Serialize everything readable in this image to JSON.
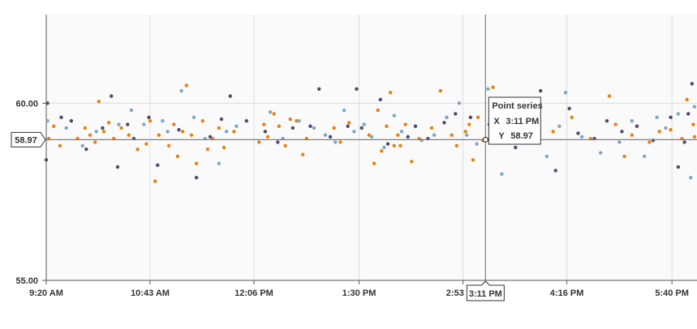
{
  "colors": {
    "series_orange": "#e8820f",
    "series_blue": "#7ea6c4",
    "series_purple": "#54486e",
    "plot_bg": "#fafafa",
    "grid": "#dddddd",
    "crosshair": "#7f7f7f"
  },
  "chart_data": {
    "type": "scatter",
    "title": "",
    "xlabel": "",
    "ylabel": "",
    "x_ticks": [
      "9:20 AM",
      "10:43 AM",
      "12:06 PM",
      "1:30 PM",
      "2:53 PM",
      "4:16 PM",
      "5:40 PM"
    ],
    "x_range": [
      "9:20 AM",
      "6:00 PM"
    ],
    "y_ticks": [
      "55.00",
      "60.00"
    ],
    "ylim": [
      55.0,
      62.5
    ],
    "grid": true,
    "series": [
      {
        "color": "#e8820f",
        "points": [
          [
            "9:22 AM",
            59.0
          ],
          [
            "9:26 AM",
            59.35
          ],
          [
            "9:31 AM",
            58.8
          ],
          [
            "9:45 AM",
            59.0
          ],
          [
            "9:51 AM",
            59.3
          ],
          [
            "9:55 AM",
            59.1
          ],
          [
            "9:59 AM",
            58.9
          ],
          [
            "10:02 AM",
            60.05
          ],
          [
            "10:06 AM",
            59.2
          ],
          [
            "10:10 AM",
            59.45
          ],
          [
            "10:14 AM",
            59.0
          ],
          [
            "10:20 AM",
            59.3
          ],
          [
            "10:26 AM",
            59.1
          ],
          [
            "10:33 AM",
            58.7
          ],
          [
            "10:40 AM",
            58.85
          ],
          [
            "10:43 AM",
            59.5
          ],
          [
            "10:47 AM",
            57.8
          ],
          [
            "10:50 AM",
            59.1
          ],
          [
            "10:58 AM",
            58.8
          ],
          [
            "11:02 AM",
            59.4
          ],
          [
            "11:05 AM",
            58.5
          ],
          [
            "11:09 AM",
            59.2
          ],
          [
            "11:12 AM",
            60.5
          ],
          [
            "11:16 AM",
            59.1
          ],
          [
            "11:20 AM",
            58.3
          ],
          [
            "11:25 AM",
            59.5
          ],
          [
            "11:29 AM",
            58.7
          ],
          [
            "11:33 AM",
            59.0
          ],
          [
            "11:38 AM",
            59.3
          ],
          [
            "11:42 AM",
            58.75
          ],
          [
            "11:50 AM",
            59.2
          ],
          [
            "12:10 PM",
            58.9
          ],
          [
            "12:14 PM",
            59.4
          ],
          [
            "12:17 PM",
            59.05
          ],
          [
            "12:22 PM",
            59.7
          ],
          [
            "12:26 PM",
            59.35
          ],
          [
            "12:31 PM",
            58.8
          ],
          [
            "12:35 PM",
            59.55
          ],
          [
            "12:40 PM",
            59.5
          ],
          [
            "12:45 PM",
            58.55
          ],
          [
            "12:48 PM",
            59.0
          ],
          [
            "1:10 PM",
            59.3
          ],
          [
            "1:15 PM",
            58.9
          ],
          [
            "1:22 PM",
            59.45
          ],
          [
            "1:38 PM",
            59.1
          ],
          [
            "1:42 PM",
            58.3
          ],
          [
            "1:45 PM",
            59.8
          ],
          [
            "1:48 PM",
            58.65
          ],
          [
            "1:52 PM",
            59.35
          ],
          [
            "1:55 PM",
            60.3
          ],
          [
            "1:58 PM",
            58.8
          ],
          [
            "2:01 PM",
            59.1
          ],
          [
            "2:03 PM",
            58.8
          ],
          [
            "2:07 PM",
            59.4
          ],
          [
            "2:12 PM",
            58.35
          ],
          [
            "2:18 PM",
            59.0
          ],
          [
            "2:28 PM",
            59.3
          ],
          [
            "2:35 PM",
            60.35
          ],
          [
            "2:44 PM",
            59.1
          ],
          [
            "2:48 PM",
            58.8
          ],
          [
            "2:55 PM",
            59.2
          ],
          [
            "2:58 PM",
            59.4
          ],
          [
            "3:01 PM",
            58.4
          ],
          [
            "3:05 PM",
            59.6
          ],
          [
            "3:09 PM",
            58.95
          ],
          [
            "3:17 PM",
            60.45
          ],
          [
            "3:30 PM",
            59.1
          ],
          [
            "3:45 PM",
            59.3
          ],
          [
            "4:05 PM",
            59.2
          ],
          [
            "4:20 PM",
            59.6
          ],
          [
            "4:35 PM",
            59.0
          ],
          [
            "4:50 PM",
            60.2
          ],
          [
            "4:55 PM",
            59.4
          ],
          [
            "5:02 PM",
            58.5
          ],
          [
            "5:08 PM",
            59.1
          ],
          [
            "5:22 PM",
            58.9
          ],
          [
            "5:30 PM",
            59.2
          ],
          [
            "5:39 PM",
            59.25
          ],
          [
            "5:48 PM",
            59.0
          ],
          [
            "5:57 PM",
            59.4
          ],
          [
            "5:52 PM",
            60.1
          ],
          [
            "5:58 PM",
            59.05
          ]
        ]
      },
      {
        "color": "#7ea6c4",
        "points": [
          [
            "9:21 AM",
            59.5
          ],
          [
            "9:36 AM",
            59.3
          ],
          [
            "9:49 AM",
            58.8
          ],
          [
            "10:00 AM",
            59.2
          ],
          [
            "10:18 AM",
            59.4
          ],
          [
            "10:28 AM",
            59.8
          ],
          [
            "10:38 AM",
            59.4
          ],
          [
            "10:53 AM",
            59.5
          ],
          [
            "10:57 AM",
            59.2
          ],
          [
            "11:08 AM",
            60.35
          ],
          [
            "11:18 AM",
            59.6
          ],
          [
            "11:27 AM",
            59.0
          ],
          [
            "11:38 AM",
            58.3
          ],
          [
            "11:44 AM",
            59.2
          ],
          [
            "11:52 AM",
            59.35
          ],
          [
            "12:19 PM",
            59.75
          ],
          [
            "12:29 PM",
            59.0
          ],
          [
            "12:42 PM",
            59.5
          ],
          [
            "12:54 PM",
            59.3
          ],
          [
            "1:03 PM",
            59.1
          ],
          [
            "1:11 PM",
            58.9
          ],
          [
            "1:18 PM",
            59.8
          ],
          [
            "1:26 PM",
            59.2
          ],
          [
            "1:34 PM",
            59.4
          ],
          [
            "1:40 PM",
            59.05
          ],
          [
            "1:50 PM",
            58.75
          ],
          [
            "1:58 PM",
            59.65
          ],
          [
            "2:04 PM",
            59.2
          ],
          [
            "2:20 PM",
            58.95
          ],
          [
            "2:30 PM",
            59.1
          ],
          [
            "2:40 PM",
            59.6
          ],
          [
            "2:50 PM",
            60.0
          ],
          [
            "2:56 PM",
            59.1
          ],
          [
            "3:04 PM",
            58.85
          ],
          [
            "3:13 PM",
            60.4
          ],
          [
            "3:24 PM",
            58.0
          ],
          [
            "3:34 PM",
            59.6
          ],
          [
            "3:50 PM",
            59.2
          ],
          [
            "4:00 PM",
            58.5
          ],
          [
            "4:10 PM",
            59.35
          ],
          [
            "4:15 PM",
            60.3
          ],
          [
            "4:28 PM",
            59.05
          ],
          [
            "4:43 PM",
            58.6
          ],
          [
            "4:58 PM",
            58.9
          ],
          [
            "5:08 PM",
            59.5
          ],
          [
            "5:18 PM",
            58.5
          ],
          [
            "5:28 PM",
            59.6
          ],
          [
            "5:35 PM",
            59.3
          ],
          [
            "5:45 PM",
            59.7
          ],
          [
            "5:55 PM",
            57.9
          ],
          [
            "5:58 PM",
            59.9
          ]
        ]
      },
      {
        "color": "#54486e",
        "points": [
          [
            "9:20 AM",
            58.4
          ],
          [
            "9:21 AM",
            60.0
          ],
          [
            "9:32 AM",
            59.6
          ],
          [
            "9:40 AM",
            59.5
          ],
          [
            "9:52 AM",
            58.7
          ],
          [
            "10:05 AM",
            59.3
          ],
          [
            "10:12 AM",
            60.2
          ],
          [
            "10:17 AM",
            58.2
          ],
          [
            "10:25 AM",
            59.4
          ],
          [
            "10:30 AM",
            59.0
          ],
          [
            "10:42 AM",
            59.6
          ],
          [
            "10:49 AM",
            58.25
          ],
          [
            "11:06 AM",
            59.25
          ],
          [
            "11:20 AM",
            57.9
          ],
          [
            "11:31 AM",
            59.05
          ],
          [
            "11:40 AM",
            59.55
          ],
          [
            "11:47 AM",
            60.2
          ],
          [
            "12:00 PM",
            59.5
          ],
          [
            "12:15 PM",
            59.2
          ],
          [
            "12:25 PM",
            58.9
          ],
          [
            "12:37 PM",
            59.3
          ],
          [
            "12:51 PM",
            59.35
          ],
          [
            "12:58 PM",
            60.4
          ],
          [
            "1:07 PM",
            59.05
          ],
          [
            "1:21 PM",
            59.35
          ],
          [
            "1:28 PM",
            60.4
          ],
          [
            "1:32 PM",
            59.3
          ],
          [
            "1:47 PM",
            60.1
          ],
          [
            "1:53 PM",
            58.85
          ],
          [
            "2:09 PM",
            59.05
          ],
          [
            "2:15 PM",
            59.35
          ],
          [
            "2:25 PM",
            59.0
          ],
          [
            "2:38 PM",
            59.45
          ],
          [
            "2:47 PM",
            59.7
          ],
          [
            "2:59 PM",
            59.6
          ],
          [
            "3:14 PM",
            59.4
          ],
          [
            "3:26 PM",
            59.15
          ],
          [
            "3:35 PM",
            58.75
          ],
          [
            "3:55 PM",
            60.35
          ],
          [
            "4:07 PM",
            58.1
          ],
          [
            "4:18 PM",
            59.85
          ],
          [
            "4:25 PM",
            59.15
          ],
          [
            "4:38 PM",
            59.0
          ],
          [
            "4:48 PM",
            59.5
          ],
          [
            "5:00 PM",
            59.2
          ],
          [
            "5:12 PM",
            59.35
          ],
          [
            "5:25 PM",
            58.95
          ],
          [
            "5:39 PM",
            59.6
          ],
          [
            "5:45 PM",
            58.2
          ],
          [
            "5:50 PM",
            58.9
          ],
          [
            "5:53 PM",
            59.7
          ],
          [
            "5:56 PM",
            60.55
          ]
        ]
      }
    ],
    "crosshair": {
      "x": "3:11 PM",
      "y": 58.97,
      "x_label": "3:11 PM",
      "y_label": "58.97"
    },
    "tooltip": {
      "title": "Point series",
      "x_key": "X",
      "x_value": "3:11 PM",
      "y_key": "Y",
      "y_value": "58.97"
    }
  }
}
